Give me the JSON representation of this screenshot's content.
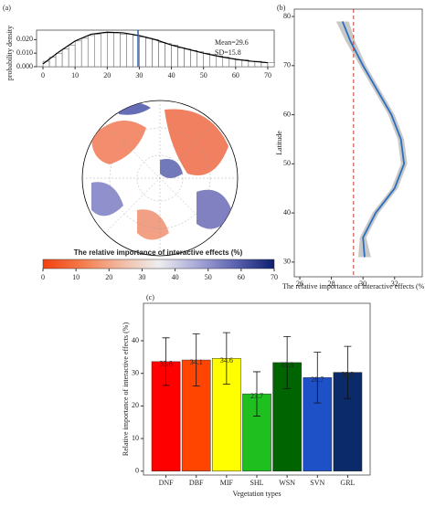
{
  "chart_data": [
    {
      "type": "histogram",
      "panel": "(a)",
      "ylabel": "probability density",
      "bins": [
        0,
        2,
        4,
        6,
        8,
        10,
        12,
        14,
        16,
        18,
        20,
        22,
        24,
        26,
        28,
        30,
        32,
        34,
        36,
        38,
        40,
        42,
        44,
        46,
        48,
        50,
        52,
        54,
        56,
        58,
        60,
        62,
        64,
        66,
        68,
        70,
        72
      ],
      "values": [
        0.004,
        0.007,
        0.01,
        0.013,
        0.016,
        0.019,
        0.021,
        0.023,
        0.024,
        0.025,
        0.025,
        0.025,
        0.024,
        0.024,
        0.023,
        0.022,
        0.021,
        0.02,
        0.018,
        0.017,
        0.016,
        0.014,
        0.013,
        0.012,
        0.011,
        0.01,
        0.009,
        0.008,
        0.007,
        0.006,
        0.005,
        0.005,
        0.004,
        0.004,
        0.003,
        0.003
      ],
      "curve": {
        "x": [
          0,
          5,
          10,
          15,
          20,
          25,
          30,
          35,
          40,
          45,
          50,
          55,
          60,
          65,
          70
        ],
        "y": [
          0.002,
          0.011,
          0.019,
          0.024,
          0.0255,
          0.025,
          0.023,
          0.02,
          0.016,
          0.013,
          0.01,
          0.0075,
          0.0055,
          0.004,
          0.003
        ]
      },
      "mean_line": 29.6,
      "mean_color": "#2a5db0",
      "annotations": [
        "Mean=29.6",
        "SD=15.8"
      ],
      "xlim": [
        -2,
        72
      ],
      "xticks": [
        0,
        10,
        20,
        30,
        40,
        50,
        60,
        70
      ],
      "ylim": [
        0,
        0.027
      ],
      "yticks": [
        {
          "value": 0,
          "label": "0.000"
        },
        {
          "value": 0.01,
          "label": "0.010"
        },
        {
          "value": 0.02,
          "label": "0.020"
        }
      ],
      "colorbar": {
        "title": "The relative importance of interactive effects (%)",
        "lim": [
          0,
          70
        ],
        "ticks": [
          0,
          10,
          20,
          30,
          40,
          50,
          60,
          70
        ],
        "colors": [
          "#f2400f",
          "#f47a4a",
          "#f2b9a0",
          "#eeeeee",
          "#a8a8d8",
          "#5a62b0",
          "#0d1f6e"
        ]
      }
    },
    {
      "type": "line",
      "panel": "(b)",
      "xlabel": "The relative importance of interactive effects (%)",
      "ylabel": "Latitude",
      "latitude": [
        79,
        75,
        70,
        65,
        60,
        55,
        50,
        45,
        40,
        35,
        31
      ],
      "values": [
        28.7,
        29.2,
        30.0,
        30.9,
        31.8,
        32.4,
        32.6,
        32.0,
        30.8,
        30.0,
        30.1
      ],
      "lower": [
        28.3,
        28.9,
        29.8,
        30.7,
        31.6,
        32.2,
        32.4,
        31.8,
        30.6,
        29.8,
        29.7
      ],
      "upper": [
        29.1,
        29.5,
        30.2,
        31.1,
        32.0,
        32.6,
        32.8,
        32.2,
        31.0,
        30.2,
        30.5
      ],
      "color": "#2a6fc0",
      "ref_line": 29.4,
      "ref_color": "#c0392b",
      "xlim": [
        25.65,
        33.75
      ],
      "xticks": [
        26,
        28,
        30,
        32
      ],
      "ylim": [
        27,
        81.5
      ],
      "yticks": [
        30,
        40,
        50,
        60,
        70,
        80
      ]
    },
    {
      "type": "bar",
      "panel": "(c)",
      "xlabel": "Vegetation types",
      "ylabel": "Relative importance of  interactive effects (%)",
      "categories": [
        "DNF",
        "DBF",
        "MIF",
        "SHL",
        "WSN",
        "SVN",
        "GRL"
      ],
      "values": [
        33.6,
        34.1,
        34.6,
        23.7,
        33.3,
        28.7,
        30.3
      ],
      "err": [
        7.3,
        8.0,
        7.9,
        6.8,
        8.0,
        7.8,
        8.0
      ],
      "colors": [
        "#ff0000",
        "#ff4500",
        "#ffff00",
        "#1fbf1f",
        "#006400",
        "#1e50c8",
        "#0a2a6a"
      ],
      "ylim": [
        -1.2,
        51.5
      ],
      "yticks": [
        0,
        10,
        20,
        30,
        40
      ]
    }
  ]
}
